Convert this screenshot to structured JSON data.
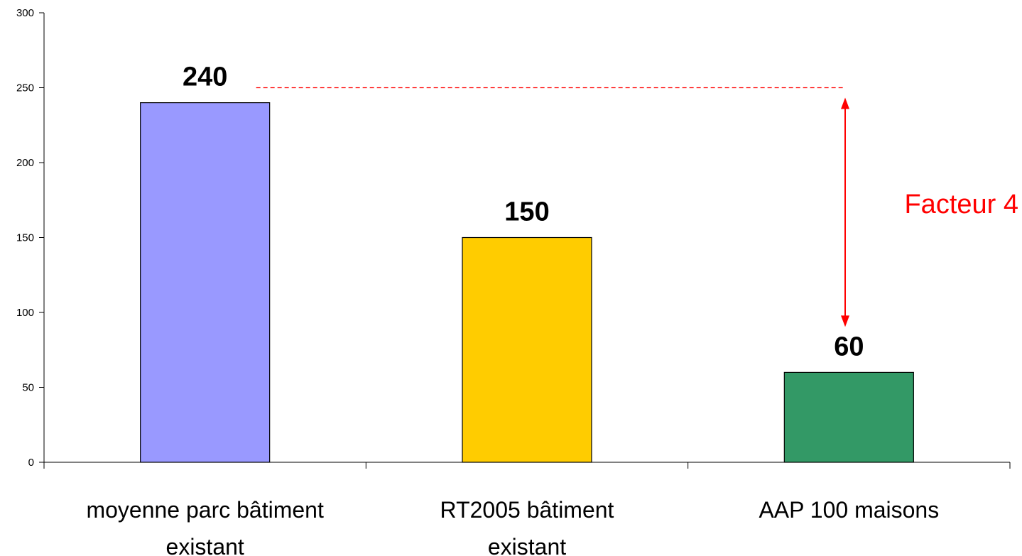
{
  "chart_data": {
    "type": "bar",
    "title": "",
    "xlabel": "",
    "ylabel": "",
    "categories": [
      [
        "moyenne parc bâtiment",
        "existant"
      ],
      [
        "RT2005 bâtiment",
        "existant"
      ],
      [
        "AAP 100 maisons"
      ]
    ],
    "values": [
      240,
      150,
      60
    ],
    "data_labels": [
      "240",
      "150",
      "60"
    ],
    "bar_colors": [
      "#9999ff",
      "#ffcc00",
      "#339966"
    ],
    "ylim": [
      0,
      300
    ],
    "yticks": [
      0,
      50,
      100,
      150,
      200,
      250,
      300
    ],
    "ytick_labels": [
      "0",
      "50",
      "100",
      "150",
      "200",
      "250",
      "300"
    ],
    "grid": false,
    "legend": "none",
    "annotation": {
      "text": "Facteur 4",
      "color": "#ff0000",
      "from_value": 250,
      "to_value": 60
    }
  }
}
